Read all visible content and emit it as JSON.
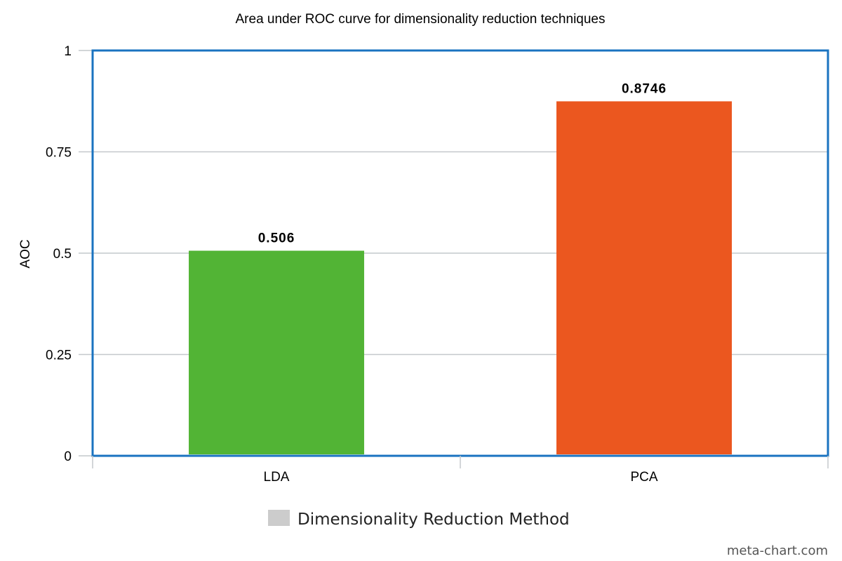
{
  "chart_data": {
    "type": "bar",
    "title": "Area under ROC curve for dimensionality reduction techniques",
    "xlabel": "",
    "ylabel": "AOC",
    "ylim": [
      0,
      1
    ],
    "yticks": [
      "0",
      "0.25",
      "0.5",
      "0.75",
      "1"
    ],
    "categories": [
      "LDA",
      "PCA"
    ],
    "values": [
      0.506,
      0.8746
    ],
    "data_labels": [
      "0.506",
      "0.8746"
    ],
    "bar_colors": [
      "#52b435",
      "#eb571f"
    ],
    "legend": {
      "label": "Dimensionality Reduction Method",
      "swatch_color": "#cccccc",
      "placement": "bottom-center"
    },
    "grid": true,
    "frame_color": "#1a73c0",
    "credit": "meta-chart.com"
  }
}
